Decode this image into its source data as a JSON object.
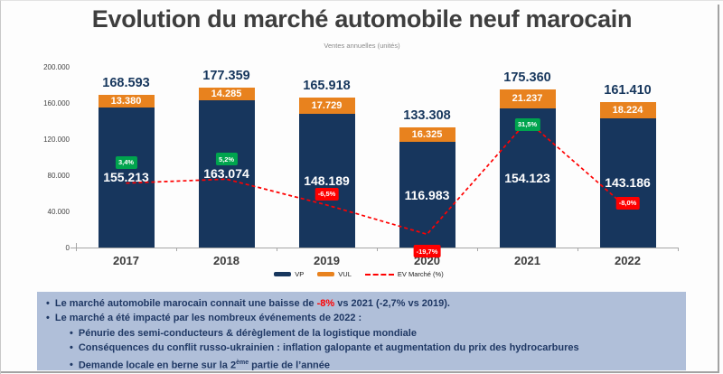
{
  "title": "Evolution du marché automobile neuf marocain",
  "subtitle": "Ventes annuelles (unités)",
  "chart_data": {
    "type": "bar",
    "stacked": true,
    "title": "Evolution du marché automobile neuf marocain",
    "subtitle": "Ventes annuelles (unités)",
    "categories": [
      "2017",
      "2018",
      "2019",
      "2020",
      "2021",
      "2022"
    ],
    "series": [
      {
        "name": "VP",
        "color": "#17365d",
        "values": [
          155213,
          163074,
          148189,
          116983,
          154123,
          143186
        ],
        "labels": [
          "155.213",
          "163.074",
          "148.189",
          "116.983",
          "154.123",
          "143.186"
        ]
      },
      {
        "name": "VUL",
        "color": "#e8821e",
        "values": [
          13380,
          14285,
          17729,
          16325,
          21237,
          18224
        ],
        "labels": [
          "13.380",
          "14.285",
          "17.729",
          "16.325",
          "21.237",
          "18.224"
        ]
      }
    ],
    "totals": {
      "values": [
        168593,
        177359,
        165918,
        133308,
        175360,
        161410
      ],
      "labels": [
        "168.593",
        "177.359",
        "165.918",
        "133.308",
        "175.360",
        "161.410"
      ]
    },
    "line": {
      "name": "EV Marché (%)",
      "color": "#ff0000",
      "values_pct": [
        3.4,
        5.2,
        -6.5,
        -19.7,
        31.5,
        -8.0
      ],
      "labels": [
        "3,4%",
        "5,2%",
        "-6,5%",
        "-19,7%",
        "31,5%",
        "-8,0%"
      ],
      "positive_badge_color": "#00a44e",
      "negative_badge_color": "#fe0000"
    },
    "y_axis": {
      "min": 0,
      "max": 200000,
      "tick_step": 40000,
      "tick_labels_top_down": [
        "200.000",
        "160.000",
        "120.000",
        "80.000",
        "40.000",
        "0"
      ]
    },
    "legend": [
      "VP",
      "VUL",
      "EV Marché (%)"
    ],
    "grid": false,
    "legend_position": "bottom"
  },
  "footer": {
    "bullets": [
      {
        "level": 1,
        "segments": [
          {
            "text": "Le marché automobile marocain connait une baisse de "
          },
          {
            "text": "-8%",
            "red": true
          },
          {
            "text": " vs 2021 (-2,7% vs 2019)."
          }
        ]
      },
      {
        "level": 1,
        "segments": [
          {
            "text": "Le marché a été impacté par les nombreux événements de 2022 :"
          }
        ]
      },
      {
        "level": 2,
        "segments": [
          {
            "text": "Pénurie des semi-conducteurs & dérèglement de la logistique mondiale"
          }
        ]
      },
      {
        "level": 2,
        "segments": [
          {
            "text": "Conséquences du conflit russo-ukrainien : inflation galopante et augmentation du prix des hydrocarbures"
          }
        ]
      },
      {
        "level": 2,
        "segments": [
          {
            "text": "Demande locale en berne sur la 2"
          },
          {
            "text": "ème",
            "sup": true
          },
          {
            "text": " partie de l’année"
          }
        ]
      }
    ]
  }
}
